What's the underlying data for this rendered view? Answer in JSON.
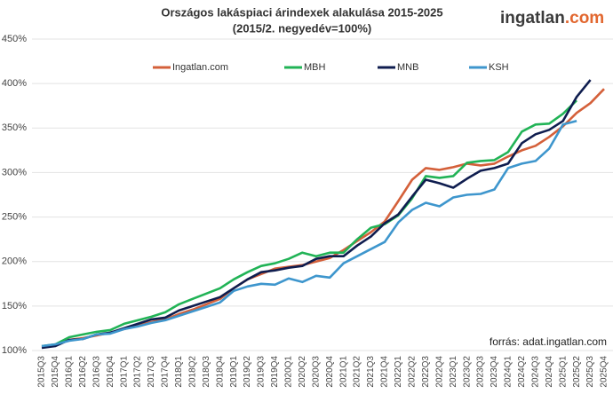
{
  "chart_data": {
    "type": "line",
    "title": "Országos lakáspiaci árindexek alakulása 2015-2025",
    "subtitle": "(2015/2. negyedév=100%)",
    "logo": "ingatlan",
    "logo_suffix": ".com",
    "source": "forrás: adat.ingatlan.com",
    "categories": [
      "2015Q3",
      "2015Q4",
      "2016Q1",
      "2016Q2",
      "2016Q3",
      "2016Q4",
      "2017Q1",
      "2017Q2",
      "2017Q3",
      "2017Q4",
      "2018Q1",
      "2018Q2",
      "2018Q3",
      "2018Q4",
      "2019Q1",
      "2019Q2",
      "2019Q3",
      "2019Q4",
      "2020Q1",
      "2020Q2",
      "2020Q3",
      "2020Q4",
      "2021Q1",
      "2021Q2",
      "2021Q3",
      "2021Q4",
      "2022Q1",
      "2022Q2",
      "2022Q3",
      "2022Q4",
      "2023Q1",
      "2023Q2",
      "2023Q3",
      "2023Q4",
      "2024Q1",
      "2024Q2",
      "2024Q3",
      "2024Q4",
      "2025Q1",
      "2025Q2",
      "2025Q3",
      "2025Q4"
    ],
    "series": [
      {
        "name": "Ingatlan.com",
        "color": "#d4603a",
        "values": [
          104,
          106,
          112,
          114,
          117,
          120,
          124,
          128,
          132,
          135,
          141,
          146,
          152,
          158,
          170,
          180,
          186,
          192,
          194,
          196,
          200,
          204,
          213,
          223,
          233,
          245,
          268,
          292,
          305,
          303,
          306,
          310,
          308,
          310,
          318,
          325,
          330,
          340,
          352,
          367,
          378,
          394
        ]
      },
      {
        "name": "MBH",
        "color": "#21b356",
        "values": [
          105,
          107,
          115,
          118,
          121,
          123,
          130,
          134,
          138,
          143,
          152,
          158,
          164,
          170,
          180,
          188,
          195,
          198,
          203,
          210,
          206,
          210,
          210,
          225,
          238,
          242,
          252,
          271,
          296,
          294,
          296,
          311,
          313,
          314,
          323,
          346,
          354,
          355,
          366,
          381,
          null,
          null
        ]
      },
      {
        "name": "MNB",
        "color": "#0f1d4f",
        "values": [
          103,
          105,
          112,
          113,
          118,
          120,
          125,
          130,
          135,
          137,
          145,
          150,
          155,
          160,
          170,
          180,
          188,
          190,
          193,
          195,
          203,
          206,
          206,
          218,
          228,
          243,
          253,
          273,
          292,
          288,
          283,
          293,
          302,
          305,
          310,
          333,
          343,
          348,
          358,
          385,
          404,
          null
        ]
      },
      {
        "name": "KSH",
        "color": "#3e96cd",
        "values": [
          105,
          107,
          111,
          113,
          118,
          119,
          124,
          127,
          131,
          134,
          139,
          144,
          149,
          154,
          167,
          172,
          175,
          174,
          181,
          177,
          184,
          182,
          198,
          206,
          214,
          222,
          244,
          258,
          266,
          262,
          272,
          275,
          276,
          281,
          305,
          310,
          313,
          327,
          354,
          358,
          null,
          null
        ]
      }
    ],
    "ylim": [
      100,
      450
    ],
    "yticks": [
      {
        "value": 100,
        "label": "100%"
      },
      {
        "value": 150,
        "label": "150%"
      },
      {
        "value": 200,
        "label": "200%"
      },
      {
        "value": 250,
        "label": "250%"
      },
      {
        "value": 300,
        "label": "300%"
      },
      {
        "value": 350,
        "label": "350%"
      },
      {
        "value": 400,
        "label": "400%"
      },
      {
        "value": 450,
        "label": "450%"
      }
    ],
    "grid": true
  }
}
